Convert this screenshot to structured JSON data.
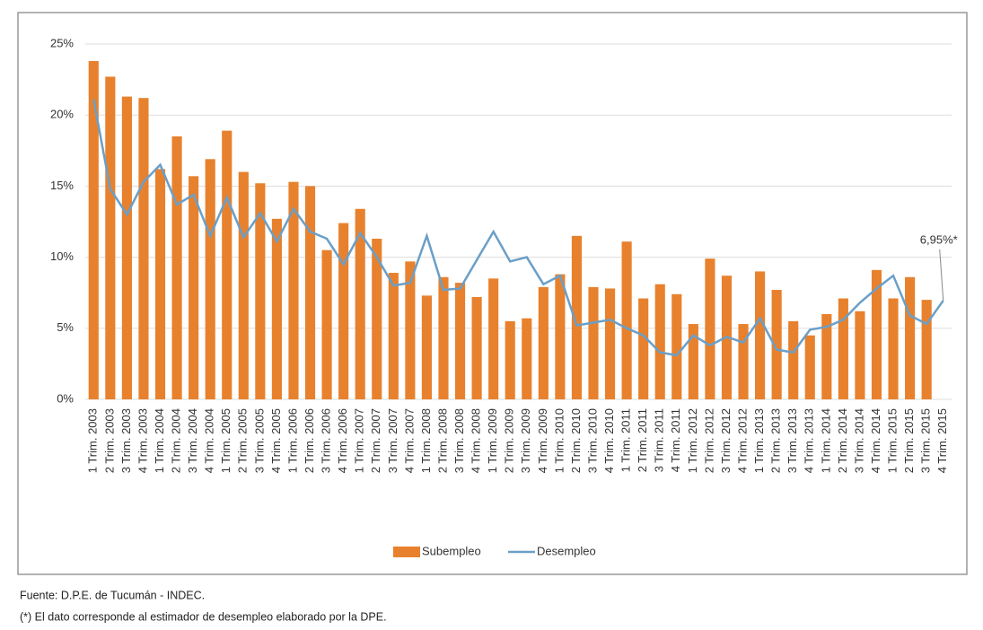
{
  "chart_data": {
    "type": "bar",
    "categories": [
      "1 Trim. 2003",
      "2 Trim. 2003",
      "3 Trim. 2003",
      "4 Trim. 2003",
      "1 Trim. 2004",
      "2 Trim. 2004",
      "3 Trim. 2004",
      "4 Trim. 2004",
      "1 Trim. 2005",
      "2 Trim. 2005",
      "3 Trim. 2005",
      "4 Trim. 2005",
      "1 Trim. 2006",
      "2 Trim. 2006",
      "3 Trim. 2006",
      "4 Trim. 2006",
      "1 Trim. 2007",
      "2 Trim. 2007",
      "3 Trim. 2007",
      "4 Trim. 2007",
      "1 Trim. 2008",
      "2 Trim. 2008",
      "3 Trim. 2008",
      "4 Trim. 2008",
      "1 Trim. 2009",
      "2 Trim. 2009",
      "3 Trim. 2009",
      "4 Trim. 2009",
      "1 Trim. 2010",
      "2 Trim. 2010",
      "3 Trim. 2010",
      "4 Trim. 2010",
      "1 Trim. 2011",
      "2 Trim. 2011",
      "3 Trim. 2011",
      "4 Trim. 2011",
      "1 Trim. 2012",
      "2 Trim. 2012",
      "3 Trim. 2012",
      "4 Trim. 2012",
      "1 Trim. 2013",
      "2 Trim. 2013",
      "3 Trim. 2013",
      "4 Trim. 2013",
      "1 Trim. 2014",
      "2 Trim. 2014",
      "3 Trim. 2014",
      "4 Trim. 2014",
      "1 Trim. 2015",
      "2 Trim. 2015",
      "3 Trim. 2015",
      "4 Trim. 2015"
    ],
    "series": [
      {
        "name": "Subempleo",
        "type": "bar",
        "color": "#e8812d",
        "values": [
          23.8,
          22.7,
          21.3,
          21.2,
          16.2,
          18.5,
          15.7,
          16.9,
          18.9,
          16.0,
          15.2,
          12.7,
          15.3,
          15.0,
          10.5,
          12.4,
          13.4,
          11.3,
          8.9,
          9.7,
          7.3,
          8.6,
          8.2,
          7.2,
          8.5,
          5.5,
          5.7,
          7.9,
          8.8,
          11.5,
          7.9,
          7.8,
          11.1,
          7.1,
          8.1,
          7.4,
          5.3,
          9.9,
          8.7,
          5.3,
          9.0,
          7.7,
          5.5,
          4.5,
          6.0,
          7.1,
          6.2,
          9.1,
          7.1,
          8.6,
          7.0,
          null
        ]
      },
      {
        "name": "Desempleo",
        "type": "line",
        "color": "#6a9fc8",
        "values": [
          21.1,
          14.8,
          13.0,
          15.3,
          16.5,
          13.7,
          14.4,
          11.5,
          14.2,
          11.4,
          13.1,
          11.1,
          13.4,
          11.8,
          11.3,
          9.5,
          11.7,
          10.0,
          8.0,
          8.2,
          11.5,
          7.7,
          7.8,
          9.8,
          11.8,
          9.7,
          10.0,
          8.1,
          8.7,
          5.2,
          5.4,
          5.6,
          5.0,
          4.5,
          3.3,
          3.1,
          4.5,
          3.8,
          4.4,
          4.0,
          5.7,
          3.5,
          3.3,
          4.9,
          5.1,
          5.6,
          6.8,
          7.8,
          8.7,
          5.9,
          5.3,
          6.95
        ],
        "value_labels": [
          null,
          null,
          null,
          null,
          null,
          null,
          null,
          null,
          null,
          null,
          null,
          null,
          null,
          null,
          null,
          null,
          null,
          null,
          null,
          null,
          null,
          null,
          null,
          null,
          null,
          null,
          null,
          null,
          null,
          null,
          null,
          null,
          null,
          null,
          null,
          null,
          null,
          null,
          null,
          null,
          null,
          null,
          null,
          null,
          null,
          null,
          null,
          null,
          null,
          null,
          null,
          "6,95%*"
        ]
      }
    ],
    "ylim": [
      0,
      25
    ],
    "yticks": [
      {
        "value": 0,
        "label": "0%"
      },
      {
        "value": 5,
        "label": "5%"
      },
      {
        "value": 10,
        "label": "10%"
      },
      {
        "value": 15,
        "label": "15%"
      },
      {
        "value": 20,
        "label": "20%"
      },
      {
        "value": 25,
        "label": "25%"
      }
    ],
    "grid": true,
    "legend": "bottom",
    "notes": [
      "Fuente: D.P.E. de Tucumán - INDEC.",
      "(*) El dato corresponde al estimador de desempleo elaborado por la DPE."
    ]
  }
}
